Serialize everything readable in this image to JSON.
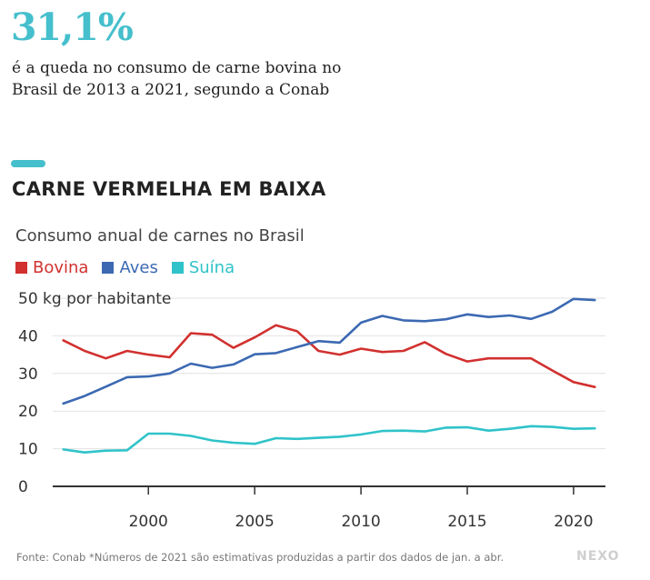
{
  "header": {
    "stat": "31,1%",
    "description": "é a queda no consumo de carne bovina no Brasil de 2013 a 2021, segundo a Conab",
    "title": "CARNE VERMELHA EM BAIXA"
  },
  "colors": {
    "accent": "#45bfcc",
    "bovina": "#d1312f",
    "aves": "#3c69b2",
    "suina": "#2fc3c9"
  },
  "chart_data": {
    "type": "line",
    "title": "CARNE VERMELHA EM BAIXA",
    "subtitle": "Consumo anual de carnes no Brasil",
    "ylabel": "kg por habitante",
    "ylim": [
      0,
      50
    ],
    "xlim": [
      1995.5,
      2021.5
    ],
    "y_ticks": [
      "0",
      "10",
      "20",
      "30",
      "40",
      "50 kg por habitante"
    ],
    "x_ticks": [
      "2000",
      "2005",
      "2010",
      "2015",
      "2020"
    ],
    "grid": true,
    "legend_position": "top-left",
    "x": [
      1996,
      1997,
      1998,
      1999,
      2000,
      2001,
      2002,
      2003,
      2004,
      2005,
      2006,
      2007,
      2008,
      2009,
      2010,
      2011,
      2012,
      2013,
      2014,
      2015,
      2016,
      2017,
      2018,
      2019,
      2020,
      2021
    ],
    "series": [
      {
        "name": "Bovina",
        "color": "#d1312f",
        "values": [
          38.8,
          36.0,
          34.0,
          36.0,
          35.0,
          34.3,
          40.7,
          40.3,
          36.8,
          39.6,
          42.8,
          41.2,
          36.0,
          35.0,
          36.6,
          35.7,
          36.0,
          38.3,
          35.2,
          33.2,
          34.0,
          34.0,
          34.0,
          30.8,
          27.7,
          26.4
        ]
      },
      {
        "name": "Aves",
        "color": "#3c69b2",
        "values": [
          22.0,
          24.0,
          26.5,
          29.0,
          29.2,
          30.0,
          32.6,
          31.5,
          32.4,
          35.1,
          35.4,
          37.0,
          38.6,
          38.2,
          43.5,
          45.3,
          44.1,
          43.9,
          44.4,
          45.7,
          45.0,
          45.4,
          44.5,
          46.4,
          49.8,
          49.5
        ]
      },
      {
        "name": "Suína",
        "color": "#2fc3c9",
        "values": [
          9.8,
          9.0,
          9.5,
          9.6,
          14.0,
          14.0,
          13.4,
          12.2,
          11.6,
          11.3,
          12.8,
          12.6,
          12.9,
          13.2,
          13.8,
          14.7,
          14.8,
          14.6,
          15.6,
          15.7,
          14.8,
          15.3,
          16.0,
          15.8,
          15.3,
          15.4
        ]
      }
    ]
  },
  "footer": {
    "source": "Fonte: Conab *Números de 2021 são estimativas produzidas a partir dos dados de jan. a abr.",
    "logo": "NEXO"
  }
}
